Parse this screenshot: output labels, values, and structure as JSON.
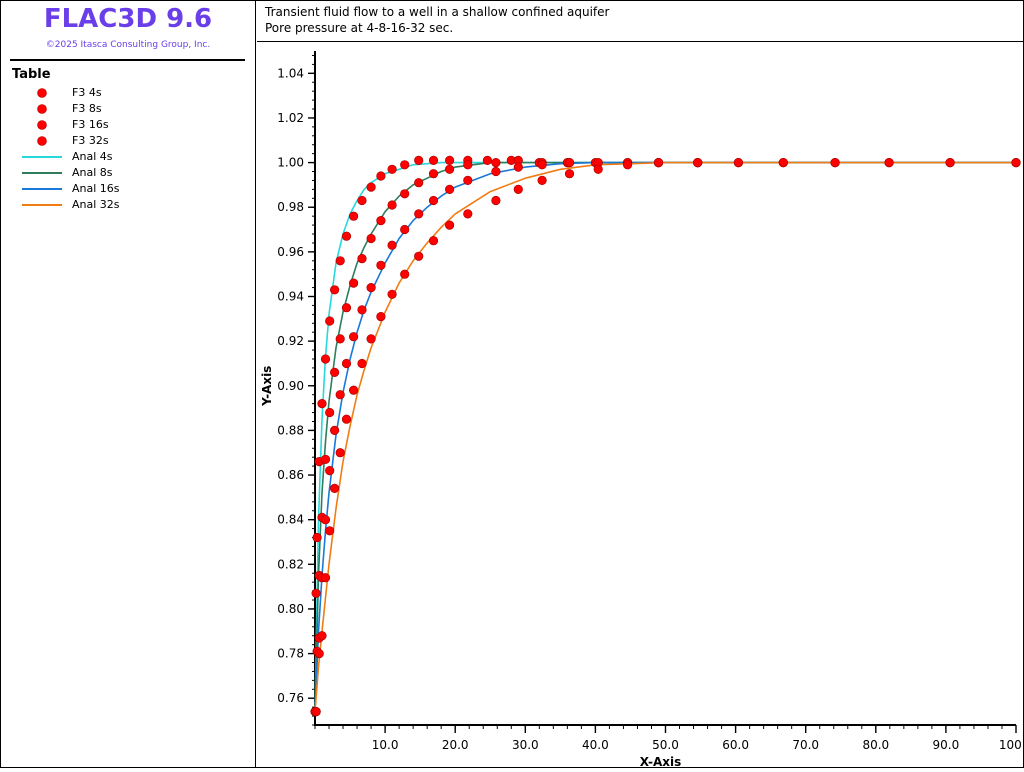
{
  "app": {
    "name": "FLAC3D 9.6",
    "copyright": "©2025 Itasca Consulting Group, Inc."
  },
  "legend": {
    "title": "Table",
    "items": [
      {
        "label": "F3 4s",
        "kind": "marker",
        "color": "#ff0000"
      },
      {
        "label": "F3 8s",
        "kind": "marker",
        "color": "#ff0000"
      },
      {
        "label": "F3 16s",
        "kind": "marker",
        "color": "#ff0000"
      },
      {
        "label": "F3 32s",
        "kind": "marker",
        "color": "#ff0000"
      },
      {
        "label": "Anal 4s",
        "kind": "line",
        "color": "#27d8dc"
      },
      {
        "label": "Anal 8s",
        "kind": "line",
        "color": "#2e7d5b"
      },
      {
        "label": "Anal 16s",
        "kind": "line",
        "color": "#1a78d8"
      },
      {
        "label": "Anal 32s",
        "kind": "line",
        "color": "#f07d14"
      }
    ]
  },
  "chart_data": {
    "type": "scatter",
    "title": "Transient fluid flow to a well in a shallow confined aquifer",
    "subtitle": "Pore pressure at 4-8-16-32 sec.",
    "xlabel": "X-Axis",
    "ylabel": "Y-Axis",
    "xlim": [
      0,
      100
    ],
    "ylim": [
      0.748,
      1.05
    ],
    "xticks": [
      "10.0",
      "20.0",
      "30.0",
      "40.0",
      "50.0",
      "60.0",
      "70.0",
      "80.0",
      "90.0",
      "100.0"
    ],
    "yticks": [
      "0.76",
      "0.78",
      "0.80",
      "0.82",
      "0.84",
      "0.86",
      "0.88",
      "0.90",
      "0.92",
      "0.94",
      "0.96",
      "0.98",
      "1.00",
      "1.02",
      "1.04"
    ],
    "grid": false,
    "legend_placement": "left panel",
    "marker_color": "#ff0000",
    "series": [
      {
        "name": "F3 4s",
        "kind": "marker",
        "x": [
          0,
          0.15,
          0.3,
          0.6,
          1.0,
          1.5,
          2.1,
          2.8,
          3.6,
          4.5,
          5.5,
          6.7,
          8.0,
          9.4,
          11.0,
          12.8,
          14.8,
          16.9,
          19.2,
          21.8,
          24.6,
          28.0,
          32.0,
          36.0
        ],
        "y": [
          0.754,
          0.807,
          0.832,
          0.866,
          0.892,
          0.912,
          0.929,
          0.943,
          0.956,
          0.967,
          0.976,
          0.983,
          0.989,
          0.994,
          0.997,
          0.999,
          1.001,
          1.001,
          1.001,
          1.001,
          1.001,
          1.001,
          1.0,
          1.0
        ]
      },
      {
        "name": "F3 8s",
        "kind": "marker",
        "x": [
          0.3,
          0.6,
          1.0,
          1.5,
          2.1,
          2.8,
          3.6,
          4.5,
          5.5,
          6.7,
          8.0,
          9.4,
          11.0,
          12.8,
          14.8,
          16.9,
          19.2,
          21.8,
          25.8,
          29.0,
          32.4,
          36.3,
          40.0,
          44.6,
          49.0,
          54.6
        ],
        "y": [
          0.781,
          0.815,
          0.841,
          0.867,
          0.888,
          0.906,
          0.921,
          0.935,
          0.946,
          0.957,
          0.966,
          0.974,
          0.981,
          0.986,
          0.991,
          0.995,
          0.997,
          0.999,
          1.0,
          1.001,
          1.0,
          1.0,
          1.0,
          1.0,
          1.0,
          1.0
        ]
      },
      {
        "name": "F3 16s",
        "kind": "marker",
        "x": [
          0.15,
          0.6,
          1.0,
          1.5,
          2.1,
          2.8,
          3.6,
          4.5,
          5.5,
          6.7,
          8.0,
          9.4,
          11.0,
          12.8,
          14.8,
          16.9,
          19.2,
          21.8,
          25.8,
          29.0,
          32.4,
          36.3,
          40.4,
          44.6,
          49.0,
          54.6,
          60.4,
          66.8,
          74.2,
          81.9,
          90.6,
          100.0
        ],
        "y": [
          0.754,
          0.787,
          0.814,
          0.84,
          0.862,
          0.88,
          0.896,
          0.91,
          0.922,
          0.934,
          0.944,
          0.954,
          0.963,
          0.97,
          0.977,
          0.983,
          0.988,
          0.992,
          0.996,
          0.998,
          0.999,
          1.0,
          1.0,
          1.0,
          1.0,
          1.0,
          1.0,
          1.0,
          1.0,
          1.0,
          1.0,
          1.0
        ]
      },
      {
        "name": "F3 32s",
        "kind": "marker",
        "x": [
          0.15,
          0.6,
          1.0,
          1.5,
          2.1,
          2.8,
          3.6,
          4.5,
          5.5,
          6.7,
          8.0,
          9.4,
          11.0,
          12.8,
          14.8,
          16.9,
          19.2,
          21.8,
          25.8,
          29.0,
          32.4,
          36.3,
          40.4,
          44.6,
          49.0,
          54.6,
          60.4,
          66.8,
          74.2,
          81.9,
          90.6,
          100.0
        ],
        "y": [
          0.754,
          0.78,
          0.788,
          0.814,
          0.835,
          0.854,
          0.87,
          0.885,
          0.898,
          0.91,
          0.921,
          0.931,
          0.941,
          0.95,
          0.958,
          0.965,
          0.972,
          0.977,
          0.983,
          0.988,
          0.992,
          0.995,
          0.997,
          0.999,
          1.0,
          1.0,
          1.0,
          1.0,
          1.0,
          1.0,
          1.0,
          1.0
        ]
      },
      {
        "name": "Anal 4s",
        "kind": "line",
        "color": "#27d8dc",
        "x": [
          0,
          0.5,
          1,
          1.5,
          2,
          3,
          4,
          5,
          6,
          7,
          8,
          10,
          12,
          14,
          16,
          18,
          20,
          25,
          30,
          40,
          60,
          100
        ],
        "y": [
          0.754,
          0.84,
          0.885,
          0.913,
          0.932,
          0.955,
          0.968,
          0.977,
          0.983,
          0.988,
          0.991,
          0.995,
          0.997,
          0.999,
          0.9995,
          1.0,
          1.0,
          1.0,
          1.0,
          1.0,
          1.0,
          1.0
        ]
      },
      {
        "name": "Anal 8s",
        "kind": "line",
        "color": "#2e7d5b",
        "x": [
          0,
          0.5,
          1,
          1.5,
          2,
          3,
          4,
          5,
          6,
          7,
          8,
          10,
          12,
          14,
          16,
          18,
          20,
          25,
          30,
          40,
          60,
          100
        ],
        "y": [
          0.754,
          0.815,
          0.852,
          0.875,
          0.893,
          0.917,
          0.933,
          0.945,
          0.955,
          0.962,
          0.968,
          0.978,
          0.985,
          0.99,
          0.993,
          0.996,
          0.998,
          1.0,
          1.0,
          1.0,
          1.0,
          1.0
        ]
      },
      {
        "name": "Anal 16s",
        "kind": "line",
        "color": "#1a78d8",
        "x": [
          0,
          0.5,
          1,
          1.5,
          2,
          3,
          4,
          5,
          6,
          7,
          8,
          10,
          12,
          14,
          16,
          18,
          20,
          25,
          30,
          35,
          40,
          50,
          60,
          100
        ],
        "y": [
          0.754,
          0.79,
          0.815,
          0.835,
          0.852,
          0.878,
          0.897,
          0.912,
          0.924,
          0.934,
          0.942,
          0.955,
          0.966,
          0.974,
          0.98,
          0.985,
          0.989,
          0.995,
          0.998,
          0.9995,
          1.0,
          1.0,
          1.0,
          1.0
        ]
      },
      {
        "name": "Anal 32s",
        "kind": "line",
        "color": "#f07d14",
        "x": [
          0,
          0.5,
          1,
          1.5,
          2,
          3,
          4,
          5,
          6,
          7,
          8,
          10,
          12,
          14,
          16,
          18,
          20,
          25,
          30,
          35,
          40,
          45,
          50,
          60,
          100
        ],
        "y": [
          0.754,
          0.774,
          0.79,
          0.805,
          0.82,
          0.845,
          0.866,
          0.882,
          0.896,
          0.907,
          0.917,
          0.933,
          0.946,
          0.956,
          0.964,
          0.971,
          0.977,
          0.987,
          0.993,
          0.997,
          0.999,
          0.9995,
          1.0,
          1.0,
          1.0
        ]
      }
    ]
  }
}
